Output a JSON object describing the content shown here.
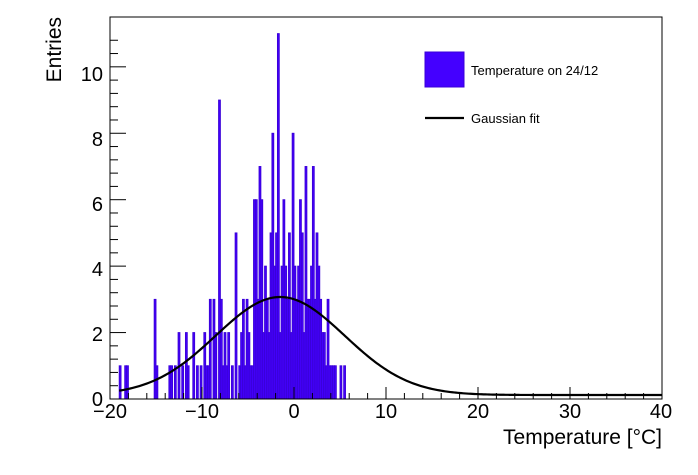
{
  "chart_data": {
    "type": "bar",
    "title": "",
    "xlabel": "Temperature [°C]",
    "ylabel": "Entries",
    "xlim": [
      -20,
      40
    ],
    "ylim": [
      0,
      11.5
    ],
    "x_ticks": [
      -20,
      -10,
      0,
      10,
      20,
      30,
      40
    ],
    "x_tick_labels": [
      "−20",
      "−10",
      "0",
      "10",
      "20",
      "30",
      "40"
    ],
    "y_ticks": [
      0,
      2,
      4,
      6,
      8,
      10
    ],
    "y_tick_labels": [
      "0",
      "2",
      "4",
      "6",
      "8",
      "10"
    ],
    "grid": false,
    "legend_position": "top-right",
    "histogram": {
      "name": "Temperature on 24/12",
      "color": "#4400ff",
      "bin_width": 0.2,
      "bin_centers": [
        -18.9,
        -18.3,
        -18.1,
        -15.1,
        -14.9,
        -13.5,
        -13.3,
        -12.9,
        -12.5,
        -12.1,
        -11.7,
        -11.5,
        -10.9,
        -10.5,
        -10.1,
        -9.7,
        -9.5,
        -9.3,
        -9.1,
        -8.7,
        -8.5,
        -8.1,
        -7.9,
        -7.7,
        -7.5,
        -7.3,
        -7.1,
        -6.7,
        -6.3,
        -5.9,
        -5.7,
        -5.5,
        -5.3,
        -5.1,
        -4.9,
        -4.7,
        -4.5,
        -4.3,
        -4.1,
        -3.9,
        -3.7,
        -3.5,
        -3.3,
        -3.1,
        -2.9,
        -2.7,
        -2.5,
        -2.3,
        -2.1,
        -1.9,
        -1.7,
        -1.5,
        -1.3,
        -1.1,
        -0.9,
        -0.7,
        -0.5,
        -0.3,
        -0.1,
        0.1,
        0.3,
        0.5,
        0.7,
        0.9,
        1.1,
        1.3,
        1.5,
        1.7,
        1.9,
        2.1,
        2.3,
        2.5,
        2.7,
        2.9,
        3.1,
        3.3,
        3.5,
        3.7,
        3.9,
        4.1,
        4.3,
        4.5,
        5.1,
        5.5
      ],
      "counts": [
        1,
        1,
        1,
        3,
        1,
        1,
        1,
        1,
        2,
        1,
        2,
        1,
        2,
        1,
        1,
        2,
        1,
        1,
        3,
        3,
        2,
        9,
        3,
        1,
        2,
        1,
        2,
        1,
        5,
        1,
        2,
        3,
        1,
        3,
        2,
        1,
        1,
        6,
        6,
        3,
        7,
        6,
        2,
        4,
        3,
        2,
        5,
        8,
        4,
        5,
        11,
        2,
        4,
        6,
        4,
        3,
        5,
        2,
        8,
        4,
        3,
        4,
        6,
        5,
        2,
        7,
        3,
        3,
        4,
        7,
        3,
        5,
        4,
        3,
        2,
        2,
        1,
        3,
        1,
        1,
        1,
        1,
        1,
        1
      ]
    },
    "fit": {
      "name": "Gaussian fit",
      "color": "#000000",
      "model": "gaussian",
      "amplitude": 2.95,
      "mean": -1.5,
      "sigma": 7.0,
      "baseline": 0.12
    }
  }
}
